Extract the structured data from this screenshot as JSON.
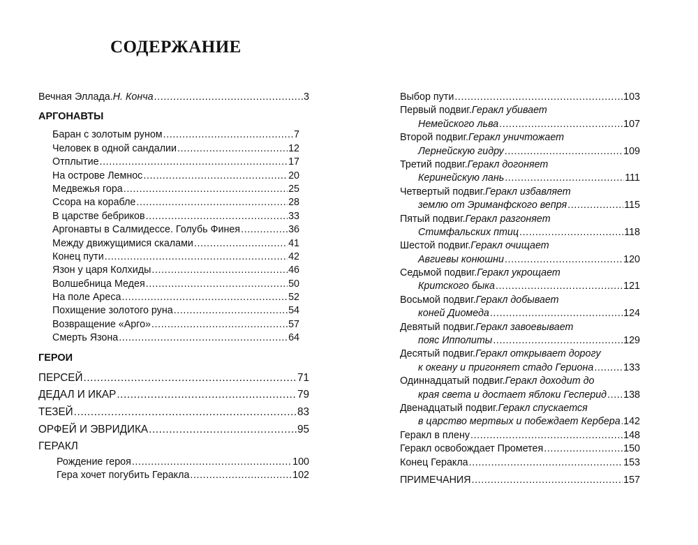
{
  "title": "СОДЕРЖАНИЕ",
  "left": [
    {
      "type": "entry",
      "text": "Вечная Эллада. ",
      "italic": "Н. Конча",
      "page": "3"
    },
    {
      "type": "gap"
    },
    {
      "type": "head",
      "text": "АРГОНАВТЫ"
    },
    {
      "type": "gap2"
    },
    {
      "type": "entry",
      "indent": true,
      "text": "Баран с золотым руном",
      "page": "7"
    },
    {
      "type": "entry",
      "indent": true,
      "text": "Человек в одной сандалии",
      "page": "12"
    },
    {
      "type": "entry",
      "indent": true,
      "text": "Отплытие",
      "page": "17"
    },
    {
      "type": "entry",
      "indent": true,
      "text": "На острове Лемнос",
      "page": "20"
    },
    {
      "type": "entry",
      "indent": true,
      "text": "Медвежья гора",
      "page": "25"
    },
    {
      "type": "entry",
      "indent": true,
      "text": "Ссора на корабле",
      "page": "28"
    },
    {
      "type": "entry",
      "indent": true,
      "text": "В царстве бебриков",
      "page": "33"
    },
    {
      "type": "entry",
      "indent": true,
      "text": "Аргонавты в Салмидессе. Голубь Финея",
      "page": "36"
    },
    {
      "type": "entry",
      "indent": true,
      "text": "Между движущимися скалами",
      "page": "41"
    },
    {
      "type": "entry",
      "indent": true,
      "text": "Конец пути",
      "page": "42"
    },
    {
      "type": "entry",
      "indent": true,
      "text": "Язон у царя Колхиды",
      "page": "46"
    },
    {
      "type": "entry",
      "indent": true,
      "text": "Волшебница Медея",
      "page": "50"
    },
    {
      "type": "entry",
      "indent": true,
      "text": "На поле Ареса",
      "page": "52"
    },
    {
      "type": "entry",
      "indent": true,
      "text": "Похищение золотого руна",
      "page": "54"
    },
    {
      "type": "entry",
      "indent": true,
      "text": "Возвращение «Арго»",
      "page": "57"
    },
    {
      "type": "entry",
      "indent": true,
      "text": "Смерть Язона",
      "page": "64"
    },
    {
      "type": "gap"
    },
    {
      "type": "head",
      "text": "ГЕРОИ"
    },
    {
      "type": "gap2"
    },
    {
      "type": "entry",
      "big": true,
      "text": "ПЕРСЕЙ",
      "page": "71"
    },
    {
      "type": "entry",
      "big": true,
      "text": "ДЕДАЛ И ИКАР",
      "page": "79"
    },
    {
      "type": "entry",
      "big": true,
      "text": "ТЕЗЕЙ",
      "page": "83"
    },
    {
      "type": "entry",
      "big": true,
      "text": "ОРФЕЙ И ЭВРИДИКА",
      "page": "95"
    },
    {
      "type": "entry",
      "big": true,
      "text": "ГЕРАКЛ"
    },
    {
      "type": "entry",
      "indent2": true,
      "text": "Рождение героя",
      "page": "100"
    },
    {
      "type": "entry",
      "indent2": true,
      "text": "Гера хочет погубить Геракла",
      "page": "102"
    }
  ],
  "right": [
    {
      "type": "entry",
      "text": "Выбор пути",
      "page": "103"
    },
    {
      "type": "entry",
      "text": "Первый подвиг. ",
      "italic": "Геракл убивает"
    },
    {
      "type": "entry",
      "indent2": true,
      "italic": "Немейского льва",
      "page": "107"
    },
    {
      "type": "entry",
      "text": "Второй подвиг. ",
      "italic": "Геракл уничтожает"
    },
    {
      "type": "entry",
      "indent2": true,
      "italic": "Лернейскую гидру",
      "page": "109"
    },
    {
      "type": "entry",
      "text": "Третий подвиг. ",
      "italic": "Геракл догоняет"
    },
    {
      "type": "entry",
      "indent2": true,
      "italic": "Керинейскую лань",
      "page": "111"
    },
    {
      "type": "entry",
      "text": "Четвертый подвиг. ",
      "italic": "Геракл избавляет"
    },
    {
      "type": "entry",
      "indent2": true,
      "italic": "землю от Эриманфского вепря",
      "page": "115"
    },
    {
      "type": "entry",
      "text": "Пятый подвиг. ",
      "italic": "Геракл разгоняет"
    },
    {
      "type": "entry",
      "indent2": true,
      "italic": "Стимфальских птиц",
      "page": "118"
    },
    {
      "type": "entry",
      "text": "Шестой подвиг. ",
      "italic": "Геракл очищает"
    },
    {
      "type": "entry",
      "indent2": true,
      "italic": "Авгиевы конюшни",
      "page": "120"
    },
    {
      "type": "entry",
      "text": "Седьмой подвиг. ",
      "italic": "Геракл укрощает"
    },
    {
      "type": "entry",
      "indent2": true,
      "italic": "Критского быка",
      "page": "121"
    },
    {
      "type": "entry",
      "text": "Восьмой подвиг. ",
      "italic": "Геракл добывает"
    },
    {
      "type": "entry",
      "indent2": true,
      "italic": "коней Диомеда",
      "page": "124"
    },
    {
      "type": "entry",
      "text": "Девятый подвиг. ",
      "italic": "Геракл завоевывает"
    },
    {
      "type": "entry",
      "indent2": true,
      "italic": "пояс Ипполиты",
      "page": "129"
    },
    {
      "type": "entry",
      "text": "Десятый подвиг. ",
      "italic": "Геракл открывает дорогу"
    },
    {
      "type": "entry",
      "indent2": true,
      "italic": "к океану и пригоняет стадо Гериона",
      "page": "133"
    },
    {
      "type": "entry",
      "text": "Одиннадцатый подвиг. ",
      "italic": "Геракл доходит до"
    },
    {
      "type": "entry",
      "indent2": true,
      "italic": "края света и достает яблоки Гесперид",
      "page": "138"
    },
    {
      "type": "entry",
      "text": "Двенадцатый подвиг. ",
      "italic": "Геракл спускается"
    },
    {
      "type": "entry",
      "indent2": true,
      "italic": "в царство мертвых и побеждает Кербера",
      "page": "142"
    },
    {
      "type": "entry",
      "text": "Геракл в плену",
      "page": "148"
    },
    {
      "type": "entry",
      "text": "Геракл освобождает Прометея",
      "page": "150"
    },
    {
      "type": "entry",
      "text": "Конец Геракла",
      "page": "153"
    },
    {
      "type": "gap2"
    },
    {
      "type": "entry",
      "text": "ПРИМЕЧАНИЯ",
      "page": "157"
    }
  ]
}
